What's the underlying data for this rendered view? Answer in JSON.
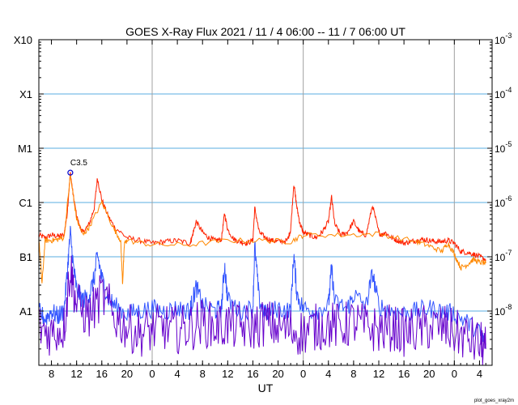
{
  "chart_data": {
    "type": "line",
    "title": "GOES X-Ray Flux   2021 / 11 /  4   06:00 -- 11 /  7   06:00   UT",
    "xlabel": "UT",
    "ylabel": "",
    "footer_text": "plot_goes_xray2m",
    "x_tick_labels": [
      "8",
      "12",
      "16",
      "20",
      "0",
      "4",
      "8",
      "12",
      "16",
      "20",
      "0",
      "4",
      "8",
      "12",
      "16",
      "20",
      "0",
      "4"
    ],
    "x_tick_hours": [
      8,
      12,
      16,
      20,
      24,
      28,
      32,
      36,
      40,
      44,
      48,
      52,
      56,
      60,
      64,
      68,
      72,
      76
    ],
    "x_range_hours": [
      6,
      78
    ],
    "day_boundaries_hours": [
      24,
      48,
      72
    ],
    "y_scale": "log",
    "y_range_log10": [
      -9,
      -3
    ],
    "y_labels_left": [
      {
        "label": "A1",
        "log10": -8
      },
      {
        "label": "B1",
        "log10": -7
      },
      {
        "label": "C1",
        "log10": -6
      },
      {
        "label": "M1",
        "log10": -5
      },
      {
        "label": "X1",
        "log10": -4
      },
      {
        "label": "X10",
        "log10": -3
      }
    ],
    "y_labels_right": [
      {
        "base": "10",
        "exp": "-8",
        "log10": -8
      },
      {
        "base": "10",
        "exp": "-7",
        "log10": -7
      },
      {
        "base": "10",
        "exp": "-6",
        "log10": -6
      },
      {
        "base": "10",
        "exp": "-5",
        "log10": -5
      },
      {
        "base": "10",
        "exp": "-4",
        "log10": -4
      },
      {
        "base": "10",
        "exp": "-3",
        "log10": -3
      }
    ],
    "grid": {
      "horizontal": true,
      "vertical_day_lines": true
    },
    "annotation": {
      "text": "C3.5",
      "x_hour": 11.0,
      "log10": -5.45
    },
    "colors": {
      "long_primary": "#ff2200",
      "long_secondary": "#ff8800",
      "short_primary": "#3355ff",
      "short_secondary": "#6600cc",
      "grid": "#5aaee0",
      "day_line": "#a0a0a0"
    },
    "series": [
      {
        "role": "long-primary",
        "color": "#ff2200",
        "x": [
          6,
          7,
          8,
          9,
          10,
          10.5,
          11,
          11.5,
          12,
          12.5,
          13,
          14,
          14.8,
          15.3,
          16,
          17,
          18,
          20,
          22,
          24,
          26,
          28,
          30,
          30.3,
          31,
          32,
          33,
          34,
          35,
          35.5,
          36,
          37,
          38,
          39,
          40,
          40.3,
          41,
          42,
          43,
          44,
          45.5,
          46,
          46.5,
          47,
          47.5,
          48,
          49,
          50,
          51,
          52,
          52.5,
          53,
          54,
          55,
          56,
          57,
          58,
          59,
          60,
          60.5,
          61,
          62,
          63,
          64,
          65,
          66,
          67,
          68,
          69,
          70,
          71,
          72,
          73,
          74,
          75,
          76,
          77
        ],
        "y": [
          -6.6,
          -6.65,
          -6.6,
          -6.62,
          -6.6,
          -6.2,
          -5.45,
          -5.9,
          -6.25,
          -6.45,
          -6.55,
          -6.4,
          -6.1,
          -5.55,
          -5.95,
          -6.25,
          -6.45,
          -6.65,
          -6.7,
          -6.75,
          -6.72,
          -6.7,
          -6.75,
          -6.65,
          -6.35,
          -6.55,
          -6.65,
          -6.7,
          -6.68,
          -6.2,
          -6.5,
          -6.68,
          -6.72,
          -6.75,
          -6.7,
          -6.1,
          -6.55,
          -6.65,
          -6.7,
          -6.72,
          -6.7,
          -6.5,
          -5.65,
          -6.1,
          -6.4,
          -6.55,
          -6.6,
          -6.65,
          -6.55,
          -6.35,
          -5.9,
          -6.4,
          -6.6,
          -6.55,
          -6.35,
          -6.55,
          -6.6,
          -6.05,
          -6.55,
          -6.6,
          -6.55,
          -6.65,
          -6.7,
          -6.75,
          -6.72,
          -6.7,
          -6.68,
          -6.7,
          -6.72,
          -6.72,
          -6.7,
          -6.75,
          -6.9,
          -6.92,
          -6.95,
          -7.0,
          -7.05
        ]
      },
      {
        "role": "long-secondary",
        "color": "#ff8800",
        "x": [
          6,
          6.5,
          7,
          8,
          9,
          10,
          11,
          12,
          13,
          14,
          16,
          18,
          19,
          19.3,
          19.6,
          20,
          24,
          30,
          36,
          42,
          46,
          48,
          54,
          60,
          66,
          68,
          70,
          71,
          72,
          73,
          74,
          75,
          76,
          77
        ],
        "y": [
          -6.65,
          -7.5,
          -6.7,
          -6.7,
          -6.68,
          -6.65,
          -5.5,
          -6.3,
          -6.6,
          -6.45,
          -6.0,
          -6.5,
          -6.7,
          -7.5,
          -6.75,
          -6.7,
          -6.78,
          -6.78,
          -6.7,
          -6.7,
          -6.72,
          -6.6,
          -6.6,
          -6.58,
          -6.72,
          -6.8,
          -6.9,
          -6.75,
          -6.95,
          -7.2,
          -7.15,
          -7.05,
          -7.1,
          -7.12
        ]
      },
      {
        "role": "short-primary",
        "color": "#3355ff",
        "x": [
          6,
          7,
          8,
          9,
          10,
          10.5,
          11,
          11.5,
          12,
          13,
          14,
          14.8,
          15.3,
          16,
          17,
          18,
          20,
          22,
          24,
          26,
          28,
          30,
          30.3,
          31,
          32,
          34,
          35,
          35.5,
          36,
          38,
          40,
          40.3,
          41,
          42,
          44,
          46,
          46.5,
          47,
          48,
          50,
          52,
          52.5,
          53,
          55,
          56,
          58,
          59,
          60,
          62,
          64,
          66,
          68,
          70,
          72,
          74,
          76,
          77
        ],
        "y": [
          -8.0,
          -8.15,
          -8.0,
          -8.1,
          -8.0,
          -7.3,
          -6.55,
          -7.2,
          -7.6,
          -7.8,
          -7.7,
          -7.4,
          -6.95,
          -7.4,
          -7.75,
          -7.9,
          -8.05,
          -8.0,
          -7.95,
          -8.0,
          -7.95,
          -8.0,
          -7.85,
          -7.55,
          -7.9,
          -8.0,
          -7.95,
          -7.15,
          -7.8,
          -8.0,
          -7.95,
          -6.8,
          -7.8,
          -8.05,
          -7.95,
          -8.0,
          -6.95,
          -7.7,
          -7.95,
          -8.0,
          -7.9,
          -7.2,
          -7.85,
          -7.95,
          -7.7,
          -7.9,
          -7.3,
          -7.9,
          -8.0,
          -8.05,
          -8.0,
          -7.95,
          -8.0,
          -8.05,
          -8.2,
          -8.4,
          -8.6
        ]
      },
      {
        "role": "short-secondary",
        "color": "#6600cc",
        "x": [
          6,
          8,
          10,
          11,
          12,
          14,
          16,
          18,
          20,
          22,
          24,
          26,
          28,
          30,
          32,
          34,
          36,
          38,
          40,
          42,
          44,
          46,
          48,
          50,
          52,
          54,
          56,
          58,
          60,
          62,
          64,
          66,
          68,
          70,
          72,
          74,
          76,
          77
        ],
        "y": [
          -8.3,
          -8.4,
          -8.3,
          -7.2,
          -7.9,
          -8.1,
          -7.7,
          -8.1,
          -8.3,
          -8.4,
          -8.35,
          -8.3,
          -8.35,
          -8.3,
          -8.2,
          -8.3,
          -8.25,
          -8.3,
          -8.3,
          -8.2,
          -8.3,
          -8.35,
          -8.4,
          -8.3,
          -8.25,
          -8.3,
          -8.2,
          -8.3,
          -8.35,
          -8.3,
          -8.4,
          -8.35,
          -8.3,
          -8.3,
          -8.4,
          -8.5,
          -8.6,
          -8.7
        ]
      }
    ]
  }
}
